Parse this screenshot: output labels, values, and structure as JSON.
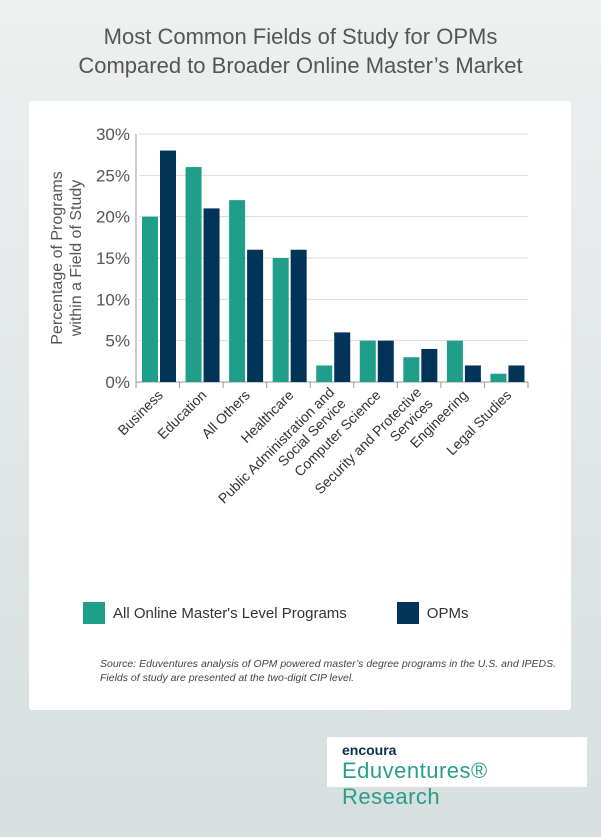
{
  "title_line1": "Most Common Fields of Study for OPMs",
  "title_line2": "Compared to Broader Online Master’s Market",
  "chart_data": {
    "type": "bar",
    "ylabel_line1": "Percentage of Programs",
    "ylabel_line2": "within  a Field of Study",
    "ylim": [
      0,
      30
    ],
    "yticks": [
      "0%",
      "5%",
      "10%",
      "15%",
      "20%",
      "25%",
      "30%"
    ],
    "grid": true,
    "legend_placement": "bottom",
    "categories": [
      [
        "Business"
      ],
      [
        "Education"
      ],
      [
        "All Others"
      ],
      [
        "Healthcare"
      ],
      [
        "Public Administration and",
        "Social Service"
      ],
      [
        "Computer Science"
      ],
      [
        "Security and Protective",
        "Services"
      ],
      [
        "Engineering"
      ],
      [
        "Legal Studies"
      ]
    ],
    "series": [
      {
        "name": "All Online Master's Level Programs",
        "color": "#1f9e89",
        "values": [
          20,
          26,
          22,
          15,
          2,
          5,
          3,
          5,
          1
        ]
      },
      {
        "name": "OPMs",
        "color": "#023459",
        "values": [
          28,
          21,
          16,
          16,
          6,
          5,
          4,
          2,
          2
        ]
      }
    ]
  },
  "source": "Source: Eduventures analysis of OPM powered master’s degree programs in the U.S. and IPEDS. Fields of study are presented at the two-digit CIP level.",
  "logo": {
    "brand": "encoura",
    "name": "Eduventures® Research"
  }
}
